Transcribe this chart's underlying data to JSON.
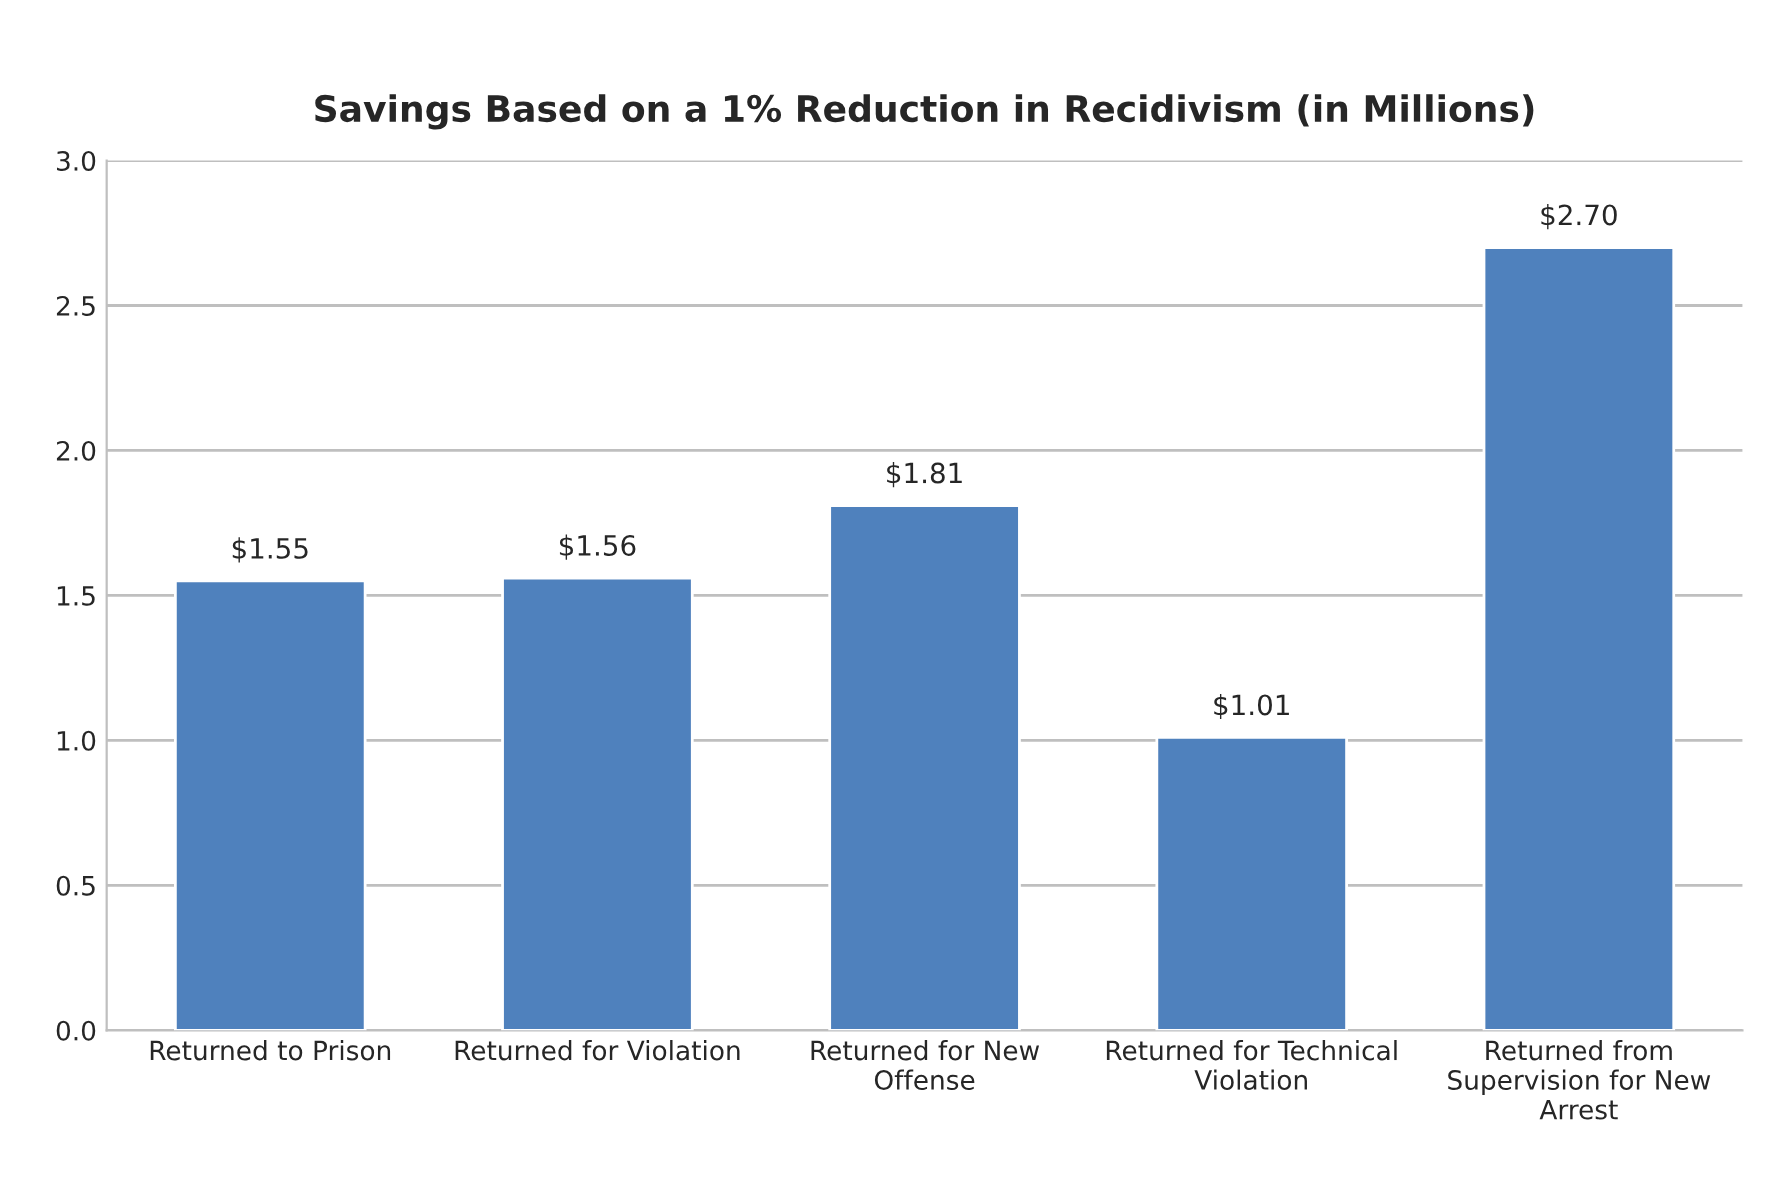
{
  "chart_data": {
    "type": "bar",
    "title": "Savings Based on a 1% Reduction in Recidivism (in Millions)",
    "categories": [
      "Returned to Prison",
      "Returned for Violation",
      "Returned for New Offense",
      "Returned for Technical Violation",
      "Returned from Supervision for New Arrest"
    ],
    "values": [
      1.55,
      1.56,
      1.81,
      1.01,
      2.7
    ],
    "value_labels": [
      "$1.55",
      "$1.56",
      "$1.81",
      "$1.01",
      "$2.70"
    ],
    "color": "#4f81bd",
    "ylim": [
      0,
      3
    ],
    "yticks": [
      {
        "value": 0,
        "label": "0.0"
      },
      {
        "value": 0.5,
        "label": "0.5"
      },
      {
        "value": 1,
        "label": "1.0"
      },
      {
        "value": 1.5,
        "label": "1.5"
      },
      {
        "value": 2,
        "label": "2.0"
      },
      {
        "value": 2.5,
        "label": "2.5"
      },
      {
        "value": 3,
        "label": "3.0"
      }
    ],
    "grid": "y"
  }
}
